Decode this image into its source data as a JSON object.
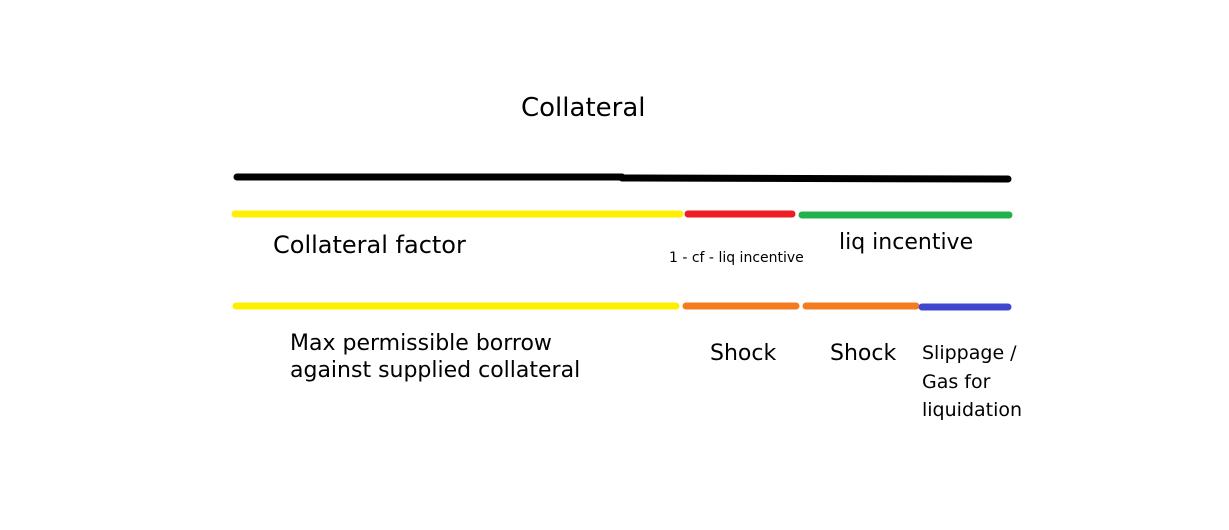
{
  "title": "Collateral",
  "rows": [
    {
      "segments": [
        {
          "label": "",
          "color": "#000000"
        }
      ]
    },
    {
      "segments": [
        {
          "label": "Collateral factor",
          "color": "#ffef00"
        },
        {
          "label": "1 - cf - liq incentive",
          "color": "#ee1c24"
        },
        {
          "label": "liq incentive",
          "color": "#22b14c"
        }
      ]
    },
    {
      "segments": [
        {
          "label": "Max permissible borrow\nagainst supplied collateral",
          "color": "#ffef00"
        },
        {
          "label": "Shock",
          "color": "#f47b20"
        },
        {
          "label": "Shock",
          "color": "#f47b20"
        },
        {
          "label": "Slippage /\nGas for\nliquidation",
          "color": "#3f48cc"
        }
      ]
    }
  ]
}
